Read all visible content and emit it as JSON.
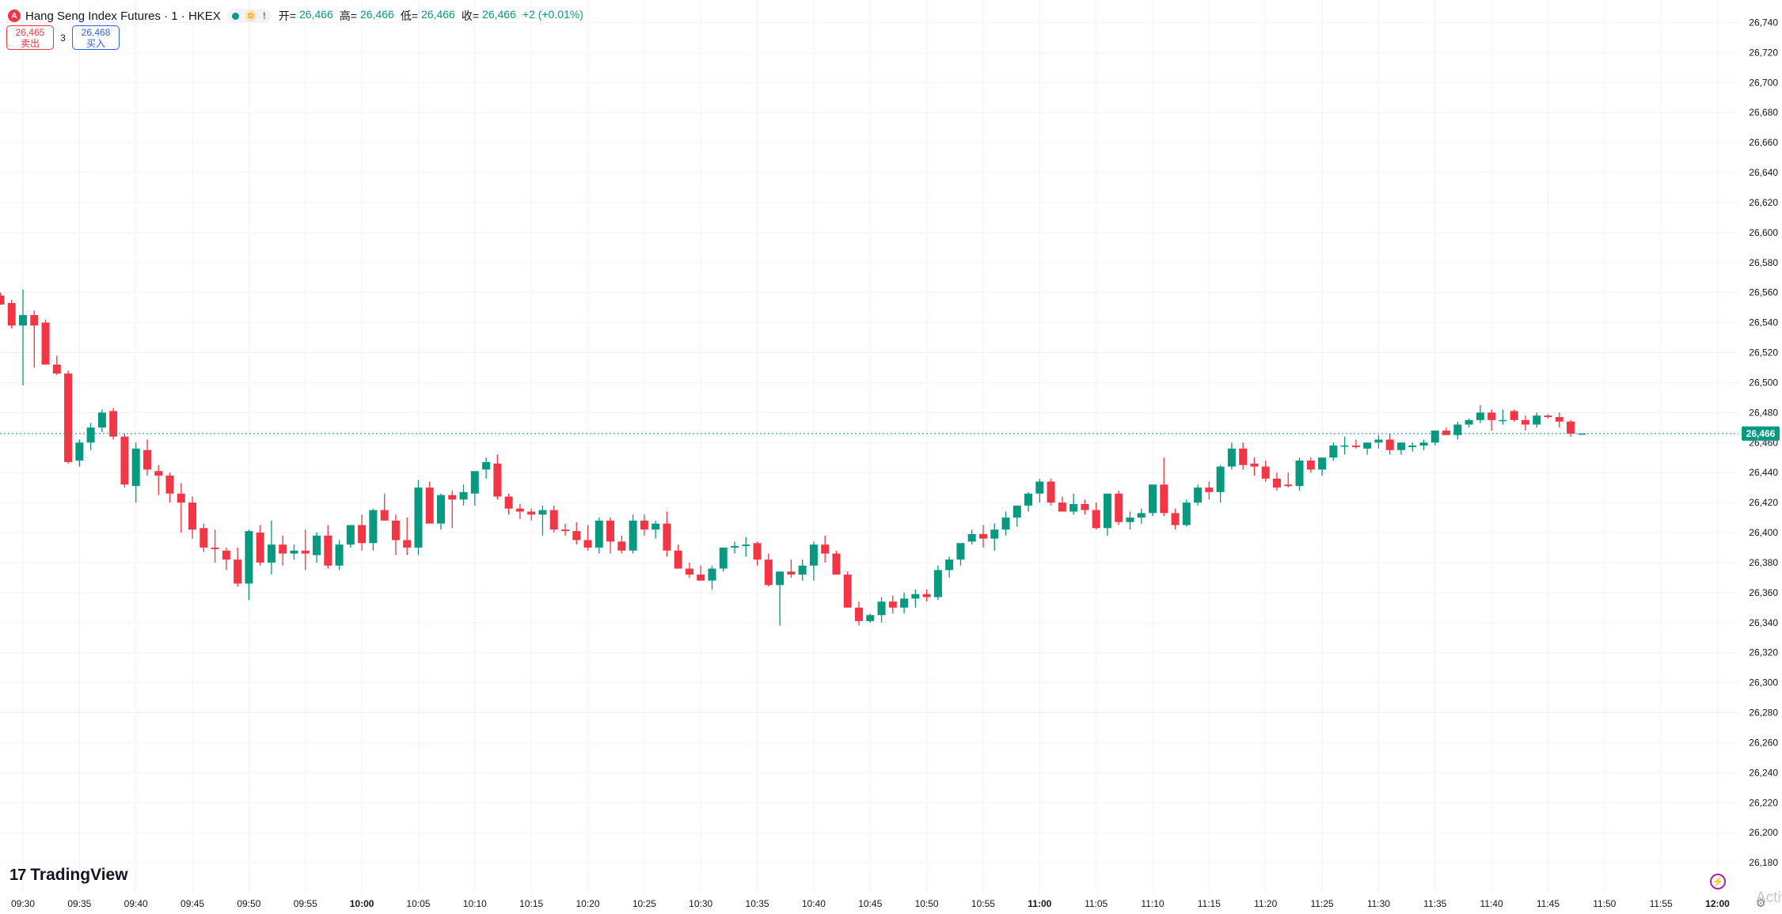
{
  "symbol": {
    "title": "Hang Seng Index Futures · 1 · HKEX",
    "icon": "hangseng-logo-icon",
    "badge_d": "D",
    "badge_warn": "!"
  },
  "ohlc": {
    "open_label": "开=",
    "open": "26,466",
    "high_label": "高=",
    "high": "26,466",
    "low_label": "低=",
    "low": "26,466",
    "close_label": "收=",
    "close": "26,466",
    "change": "+2 (+0.01%)"
  },
  "trade": {
    "sell_price": "26,465",
    "sell_label": "卖出",
    "spread": "3",
    "buy_price": "26,468",
    "buy_label": "买入"
  },
  "branding": {
    "logo_text": "TradingView",
    "watermark": "Activ"
  },
  "colors": {
    "up": "#089981",
    "down": "#f23645",
    "grid": "#f0f3fa",
    "axis_text": "#131722"
  },
  "chart_data": {
    "type": "candlestick",
    "y_range": [
      26160,
      26755
    ],
    "y_ticks": [
      26180,
      26200,
      26220,
      26240,
      26260,
      26280,
      26300,
      26320,
      26340,
      26360,
      26380,
      26400,
      26420,
      26440,
      26460,
      26480,
      26500,
      26520,
      26540,
      26560,
      26580,
      26600,
      26620,
      26640,
      26660,
      26680,
      26700,
      26720,
      26740
    ],
    "x_labels": [
      "09:30",
      "09:35",
      "09:40",
      "09:45",
      "09:50",
      "09:55",
      "10:00",
      "10:05",
      "10:10",
      "10:15",
      "10:20",
      "10:25",
      "10:30",
      "10:35",
      "10:40",
      "10:45",
      "10:50",
      "10:55",
      "11:00",
      "11:05",
      "11:10",
      "11:15",
      "11:20",
      "11:25",
      "11:30",
      "11:35",
      "11:40",
      "11:45",
      "11:50",
      "11:55",
      "12:00"
    ],
    "bold_labels": [
      "10:00",
      "11:00",
      "12:00"
    ],
    "last_price": 26466,
    "last_price_label": "26,466",
    "candles": [
      [
        26558,
        26560,
        26552,
        26552
      ],
      [
        26553,
        26555,
        26536,
        26538
      ],
      [
        26538,
        26562,
        26498,
        26545
      ],
      [
        26545,
        26548,
        26510,
        26538
      ],
      [
        26540,
        26542,
        26512,
        26512
      ],
      [
        26512,
        26518,
        26505,
        26506
      ],
      [
        26506,
        26508,
        26446,
        26447
      ],
      [
        26448,
        26462,
        26444,
        26460
      ],
      [
        26460,
        26473,
        26455,
        26470
      ],
      [
        26470,
        26482,
        26467,
        26480
      ],
      [
        26481,
        26483,
        26462,
        26464
      ],
      [
        26464,
        26466,
        26430,
        26432
      ],
      [
        26431,
        26460,
        26420,
        26456
      ],
      [
        26455,
        26462,
        26438,
        26442
      ],
      [
        26441,
        26445,
        26425,
        26438
      ],
      [
        26438,
        26440,
        26420,
        26426
      ],
      [
        26426,
        26433,
        26400,
        26420
      ],
      [
        26420,
        26424,
        26396,
        26402
      ],
      [
        26403,
        26406,
        26387,
        26390
      ],
      [
        26390,
        26402,
        26380,
        26389
      ],
      [
        26388,
        26390,
        26375,
        26382
      ],
      [
        26382,
        26390,
        26364,
        26366
      ],
      [
        26366,
        26402,
        26355,
        26401
      ],
      [
        26400,
        26405,
        26378,
        26380
      ],
      [
        26380,
        26408,
        26372,
        26392
      ],
      [
        26392,
        26398,
        26378,
        26386
      ],
      [
        26386,
        26392,
        26382,
        26388
      ],
      [
        26388,
        26402,
        26375,
        26386
      ],
      [
        26385,
        26400,
        26380,
        26398
      ],
      [
        26398,
        26405,
        26376,
        26378
      ],
      [
        26378,
        26395,
        26375,
        26392
      ],
      [
        26392,
        26405,
        26390,
        26405
      ],
      [
        26405,
        26412,
        26388,
        26393
      ],
      [
        26393,
        26416,
        26388,
        26415
      ],
      [
        26415,
        26426,
        26408,
        26408
      ],
      [
        26408,
        26412,
        26385,
        26395
      ],
      [
        26395,
        26410,
        26385,
        26390
      ],
      [
        26390,
        26435,
        26385,
        26430
      ],
      [
        26430,
        26434,
        26410,
        26406
      ],
      [
        26406,
        26426,
        26402,
        26425
      ],
      [
        26425,
        26428,
        26403,
        26422
      ],
      [
        26422,
        26432,
        26418,
        26427
      ],
      [
        26426,
        26438,
        26418,
        26441
      ],
      [
        26442,
        26450,
        26436,
        26447
      ],
      [
        26446,
        26452,
        26422,
        26424
      ],
      [
        26424,
        26426,
        26412,
        26416
      ],
      [
        26416,
        26419,
        26409,
        26414
      ],
      [
        26414,
        26416,
        26408,
        26412
      ],
      [
        26412,
        26418,
        26398,
        26415
      ],
      [
        26415,
        26418,
        26400,
        26402
      ],
      [
        26402,
        26406,
        26398,
        26401
      ],
      [
        26401,
        26407,
        26392,
        26395
      ],
      [
        26395,
        26405,
        26388,
        26390
      ],
      [
        26390,
        26410,
        26386,
        26408
      ],
      [
        26408,
        26410,
        26386,
        26394
      ],
      [
        26394,
        26398,
        26386,
        26388
      ],
      [
        26388,
        26412,
        26386,
        26408
      ],
      [
        26408,
        26412,
        26398,
        26402
      ],
      [
        26402,
        26408,
        26396,
        26406
      ],
      [
        26406,
        26414,
        26384,
        26388
      ],
      [
        26388,
        26392,
        26376,
        26376
      ],
      [
        26376,
        26380,
        26370,
        26372
      ],
      [
        26372,
        26378,
        26368,
        26368
      ],
      [
        26368,
        26378,
        26362,
        26376
      ],
      [
        26376,
        26390,
        26374,
        26390
      ],
      [
        26390,
        26394,
        26386,
        26391
      ],
      [
        26391,
        26397,
        26384,
        26392
      ],
      [
        26393,
        26394,
        26378,
        26382
      ],
      [
        26382,
        26386,
        26364,
        26365
      ],
      [
        26365,
        26372,
        26338,
        26374
      ],
      [
        26374,
        26382,
        26370,
        26372
      ],
      [
        26372,
        26382,
        26368,
        26378
      ],
      [
        26378,
        26394,
        26368,
        26392
      ],
      [
        26392,
        26398,
        26380,
        26386
      ],
      [
        26386,
        26388,
        26372,
        26372
      ],
      [
        26372,
        26374,
        26350,
        26350
      ],
      [
        26350,
        26354,
        26338,
        26341
      ],
      [
        26341,
        26346,
        26340,
        26345
      ],
      [
        26345,
        26357,
        26340,
        26354
      ],
      [
        26354,
        26358,
        26346,
        26350
      ],
      [
        26350,
        26360,
        26346,
        26356
      ],
      [
        26356,
        26362,
        26350,
        26359
      ],
      [
        26359,
        26362,
        26354,
        26357
      ],
      [
        26357,
        26378,
        26355,
        26375
      ],
      [
        26375,
        26384,
        26370,
        26382
      ],
      [
        26382,
        26392,
        26378,
        26393
      ],
      [
        26394,
        26402,
        26392,
        26399
      ],
      [
        26399,
        26405,
        26390,
        26396
      ],
      [
        26396,
        26406,
        26388,
        26402
      ],
      [
        26402,
        26414,
        26398,
        26410
      ],
      [
        26410,
        26418,
        26404,
        26418
      ],
      [
        26418,
        26427,
        26414,
        26426
      ],
      [
        26426,
        26436,
        26420,
        26434
      ],
      [
        26434,
        26436,
        26418,
        26420
      ],
      [
        26420,
        26424,
        26414,
        26414
      ],
      [
        26414,
        26426,
        26412,
        26419
      ],
      [
        26419,
        26422,
        26412,
        26415
      ],
      [
        26415,
        26420,
        26402,
        26403
      ],
      [
        26403,
        26426,
        26398,
        26426
      ],
      [
        26426,
        26428,
        26405,
        26407
      ],
      [
        26407,
        26414,
        26402,
        26410
      ],
      [
        26410,
        26416,
        26406,
        26413
      ],
      [
        26413,
        26432,
        26411,
        26432
      ],
      [
        26432,
        26450,
        26411,
        26413
      ],
      [
        26413,
        26416,
        26402,
        26405
      ],
      [
        26405,
        26422,
        26404,
        26420
      ],
      [
        26420,
        26432,
        26418,
        26430
      ],
      [
        26430,
        26434,
        26422,
        26427
      ],
      [
        26427,
        26445,
        26420,
        26444
      ],
      [
        26444,
        26460,
        26442,
        26456
      ],
      [
        26456,
        26460,
        26442,
        26445
      ],
      [
        26446,
        26450,
        26438,
        26444
      ],
      [
        26444,
        26448,
        26434,
        26436
      ],
      [
        26436,
        26440,
        26428,
        26430
      ],
      [
        26432,
        26440,
        26430,
        26431
      ],
      [
        26431,
        26450,
        26428,
        26448
      ],
      [
        26448,
        26450,
        26440,
        26442
      ],
      [
        26442,
        26450,
        26438,
        26450
      ],
      [
        26450,
        26460,
        26448,
        26458
      ],
      [
        26458,
        26464,
        26452,
        26458
      ],
      [
        26458,
        26462,
        26456,
        26457
      ],
      [
        26456,
        26460,
        26452,
        26460
      ],
      [
        26460,
        26465,
        26456,
        26462
      ],
      [
        26462,
        26466,
        26452,
        26455
      ],
      [
        26455,
        26460,
        26452,
        26460
      ],
      [
        26457,
        26460,
        26454,
        26458
      ],
      [
        26458,
        26462,
        26455,
        26460
      ],
      [
        26460,
        26468,
        26458,
        26468
      ],
      [
        26468,
        26470,
        26465,
        26465
      ],
      [
        26465,
        26474,
        26462,
        26472
      ],
      [
        26472,
        26476,
        26470,
        26475
      ],
      [
        26475,
        26485,
        26473,
        26480
      ],
      [
        26480,
        26482,
        26468,
        26475
      ],
      [
        26475,
        26482,
        26472,
        26475
      ],
      [
        26481,
        26482,
        26474,
        26475
      ],
      [
        26475,
        26478,
        26468,
        26472
      ],
      [
        26472,
        26480,
        26470,
        26478
      ],
      [
        26478,
        26479,
        26476,
        26477
      ],
      [
        26477,
        26480,
        26470,
        26474
      ],
      [
        26474,
        26475,
        26464,
        26466
      ],
      [
        26466,
        26466,
        26466,
        26466
      ]
    ]
  }
}
